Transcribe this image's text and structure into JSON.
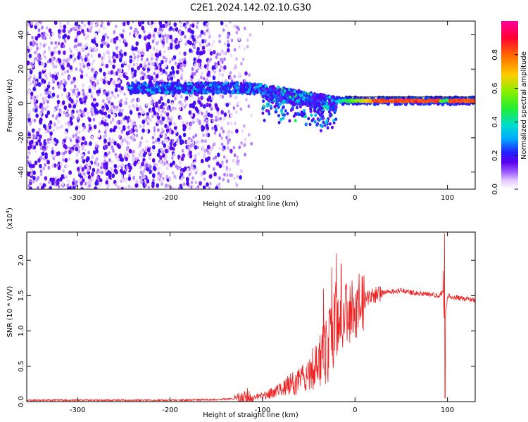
{
  "title": "C2E1.2024.142.02.10.G30",
  "colors": {
    "snr_line": "#ee2222",
    "colormap": [
      "#ffffff",
      "#e6ccff",
      "#a060ff",
      "#5a00ee",
      "#2222ff",
      "#00aaff",
      "#00ddcc",
      "#22ee33",
      "#88ee00",
      "#ffcc00",
      "#ff6600",
      "#ff0033",
      "#ff0099"
    ]
  },
  "chart_data": [
    {
      "type": "heatmap",
      "xlabel": "Height of straight line (km)",
      "ylabel": "Frequency (Hz)",
      "xlim": [
        -355,
        130
      ],
      "ylim": [
        -50,
        48
      ],
      "x_ticks": [
        -300,
        -200,
        -100,
        0,
        100
      ],
      "y_ticks": [
        -40,
        -20,
        0,
        20,
        40
      ],
      "colorbar": {
        "label": "Normalized spectral amplitude",
        "range": [
          0,
          1
        ],
        "ticks": [
          "0.0",
          "0.2",
          "0.4",
          "0.6",
          "0.8"
        ],
        "tick_values": [
          0,
          0.2,
          0.4,
          0.6,
          0.8
        ]
      },
      "features": [
        {
          "name": "noise",
          "x_range": [
            -355,
            -115
          ],
          "freq_range": [
            -50,
            48
          ],
          "amplitude": 0.1
        },
        {
          "name": "signal-band-upper",
          "x_range": [
            -245,
            -100
          ],
          "freq_center": 9,
          "amplitude": 0.3
        },
        {
          "name": "signal-band-descending",
          "x_range": [
            -100,
            -20
          ],
          "freq_start": 7,
          "freq_end": 0,
          "amplitude": 0.35
        },
        {
          "name": "signal-band-strong",
          "x_range": [
            -20,
            130
          ],
          "freq_center": 1.5,
          "amplitude": 0.85
        }
      ]
    },
    {
      "type": "line",
      "xlabel": "Height of straight line (km)",
      "ylabel": "SNR (10 * V/V)",
      "scale_label": "(x10",
      "scale_exp": "4",
      "xlim": [
        -355,
        130
      ],
      "ylim": [
        0,
        2.4
      ],
      "x_ticks": [
        -300,
        -200,
        -100,
        0,
        100
      ],
      "y_ticks": [
        "0.0",
        "0.5",
        "1.0",
        "1.5",
        "2.0"
      ],
      "y_tick_values": [
        0,
        0.5,
        1.0,
        1.5,
        2.0
      ],
      "series": [
        {
          "x": [
            -355,
            -300,
            -250,
            -200,
            -150,
            -130,
            -110,
            -100,
            -90,
            -80,
            -70,
            -60,
            -50,
            -40,
            -30,
            -25,
            -20,
            -15,
            -10,
            -5,
            0,
            10,
            20,
            30,
            40,
            50,
            60,
            70,
            80,
            90,
            95,
            97,
            100,
            110,
            120,
            130
          ],
          "values": [
            0.02,
            0.02,
            0.02,
            0.02,
            0.03,
            0.04,
            0.06,
            0.08,
            0.12,
            0.18,
            0.24,
            0.3,
            0.4,
            0.55,
            0.75,
            0.9,
            1.05,
            1.15,
            1.22,
            1.28,
            1.32,
            1.42,
            1.5,
            1.54,
            1.56,
            1.57,
            1.55,
            1.53,
            1.52,
            1.5,
            1.55,
            1.1,
            1.5,
            1.47,
            1.45,
            1.44
          ]
        }
      ]
    }
  ]
}
